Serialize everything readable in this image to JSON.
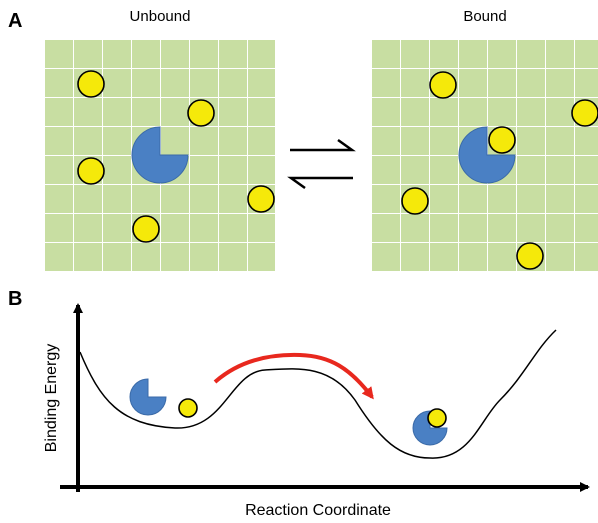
{
  "panel_a": {
    "label": "A",
    "left_title": "Unbound",
    "right_title": "Bound"
  },
  "panel_b": {
    "label": "B",
    "y_axis_label": "Binding Energy",
    "x_axis_label": "Reaction Coordinate"
  }
}
